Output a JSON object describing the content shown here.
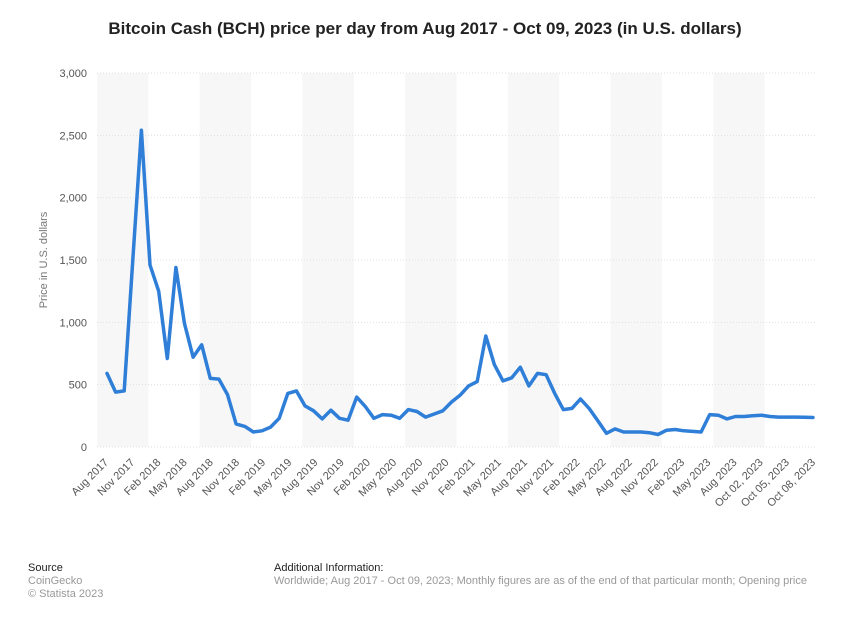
{
  "chart_data": {
    "type": "line",
    "title": "Bitcoin Cash (BCH) price per day from Aug 2017 - Oct 09, 2023 (in U.S. dollars)",
    "xlabel": "",
    "ylabel": "Price in U.S. dollars",
    "ylim": [
      0,
      3000
    ],
    "yticks": [
      0,
      500,
      1000,
      1500,
      2000,
      2500,
      3000
    ],
    "ytick_labels": [
      "0",
      "500",
      "1,000",
      "1,500",
      "2,000",
      "2,500",
      "3,000"
    ],
    "xtick_labels": [
      "Aug 2017",
      "Nov 2017",
      "Feb 2018",
      "May 2018",
      "Aug 2018",
      "Nov 2018",
      "Feb 2019",
      "May 2019",
      "Aug 2019",
      "Nov 2019",
      "Feb 2020",
      "May 2020",
      "Aug 2020",
      "Nov 2020",
      "Feb 2021",
      "May 2021",
      "Aug 2021",
      "Nov 2021",
      "Feb 2022",
      "May 2022",
      "Aug 2022",
      "Nov 2022",
      "Feb 2023",
      "May 2023",
      "Aug 2023",
      "Oct 02, 2023",
      "Oct 05, 2023",
      "Oct 08, 2023"
    ],
    "series": [
      {
        "name": "Bitcoin Cash (BCH)",
        "color": "#2f7ed8",
        "values": [
          590,
          440,
          450,
          1500,
          2540,
          1460,
          1250,
          710,
          1440,
          990,
          720,
          820,
          550,
          545,
          420,
          185,
          165,
          120,
          130,
          160,
          230,
          430,
          450,
          330,
          290,
          225,
          295,
          230,
          215,
          400,
          325,
          230,
          260,
          255,
          230,
          300,
          285,
          240,
          265,
          290,
          360,
          415,
          490,
          525,
          890,
          660,
          530,
          555,
          640,
          490,
          590,
          580,
          430,
          300,
          310,
          385,
          310,
          210,
          110,
          145,
          120,
          120,
          120,
          115,
          100,
          135,
          140,
          130,
          125,
          120,
          260,
          255,
          225,
          245,
          245,
          250,
          255,
          245,
          240,
          240,
          240,
          238,
          237
        ]
      }
    ]
  },
  "footer": {
    "source_heading": "Source",
    "source_lines": [
      "CoinGecko",
      "© Statista 2023"
    ],
    "info_heading": "Additional Information:",
    "info_text": "Worldwide; Aug 2017 - Oct 09, 2023; Monthly figures are as of the end of that particular month; Opening price"
  },
  "colors": {
    "line": "#2f7ed8",
    "band": "#f7f7f7",
    "grid": "#e0e0e0",
    "axis_text": "#555555"
  }
}
